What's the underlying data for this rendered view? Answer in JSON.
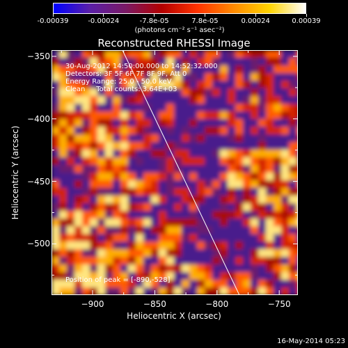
{
  "colorbar": {
    "tick_labels": [
      "-0.00039",
      "-0.00024",
      "-7.8e-05",
      "7.8e-05",
      "0.00024",
      "0.00039"
    ],
    "units": "(photons cm⁻² s⁻¹ asec⁻²)",
    "colormap": [
      "#0000ff",
      "#5a1fa8",
      "#7a1a66",
      "#b30000",
      "#ff3300",
      "#ff8a00",
      "#ffd400",
      "#ffffff"
    ]
  },
  "title": "Reconstructed RHESSI Image",
  "annotations": [
    "30-Aug-2012 14:50:00.000 to 14:52:32.000",
    "Detectors: 3F 5F 6F 7F 8F 9F, Att 0",
    "Energy Range: 25.0 - 50.0 keV",
    "Clean     Total counts: 3.64E+03"
  ],
  "position_annotation": "Position of peak = [-890,-528]",
  "footer": "16-May-2014 05:23",
  "chart_data": {
    "type": "heatmap",
    "title": "Reconstructed RHESSI Image",
    "xlabel": "Heliocentric X (arcsec)",
    "ylabel": "Heliocentric Y (arcsec)",
    "xlim": [
      -933,
      -735
    ],
    "ylim": [
      -541,
      -345
    ],
    "x_ticks": [
      -900,
      -850,
      -800,
      -750
    ],
    "y_ticks": [
      -350,
      -400,
      -450,
      -500
    ],
    "x_tick_labels": [
      "−900",
      "−850",
      "−800",
      "−750"
    ],
    "y_tick_labels": [
      "−350",
      "−400",
      "−450",
      "−500"
    ],
    "colorbar_range": [
      -0.00039,
      0.00039
    ],
    "limb_line": [
      [
        -876,
        -345
      ],
      [
        -782,
        -541
      ]
    ],
    "peak": [
      -890,
      -528
    ]
  }
}
